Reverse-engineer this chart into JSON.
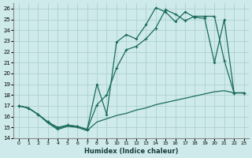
{
  "xlabel": "Humidex (Indice chaleur)",
  "background_color": "#ceeaea",
  "grid_color": "#aed0d0",
  "line_color": "#1a6b5a",
  "xlim": [
    -0.5,
    23.5
  ],
  "ylim": [
    14,
    26.5
  ],
  "xticks": [
    0,
    1,
    2,
    3,
    4,
    5,
    6,
    7,
    8,
    9,
    10,
    11,
    12,
    13,
    14,
    15,
    16,
    17,
    18,
    19,
    20,
    21,
    22,
    23
  ],
  "yticks": [
    14,
    15,
    16,
    17,
    18,
    19,
    20,
    21,
    22,
    23,
    24,
    25,
    26
  ],
  "line1_x": [
    0,
    1,
    2,
    3,
    4,
    5,
    6,
    7,
    8,
    9,
    10,
    11,
    12,
    13,
    14,
    15,
    16,
    17,
    18,
    19,
    20,
    21,
    22,
    23
  ],
  "line1_y": [
    17.0,
    16.8,
    16.2,
    15.4,
    14.8,
    15.1,
    15.0,
    14.7,
    15.5,
    15.8,
    16.1,
    16.3,
    16.6,
    16.8,
    17.1,
    17.3,
    17.5,
    17.7,
    17.9,
    18.1,
    18.3,
    18.4,
    18.2,
    18.2
  ],
  "line2_x": [
    0,
    1,
    2,
    3,
    4,
    5,
    6,
    7,
    8,
    9,
    10,
    11,
    12,
    13,
    14,
    15,
    16,
    17,
    18,
    19,
    20,
    21,
    22,
    23
  ],
  "line2_y": [
    17.0,
    16.8,
    16.2,
    15.5,
    15.0,
    15.2,
    15.1,
    14.8,
    19.0,
    16.2,
    22.9,
    23.6,
    23.2,
    24.5,
    26.1,
    25.7,
    24.8,
    25.7,
    25.2,
    25.1,
    21.0,
    25.0,
    18.2,
    18.2
  ],
  "line3_x": [
    0,
    1,
    2,
    3,
    4,
    5,
    6,
    7,
    8,
    9,
    10,
    11,
    12,
    13,
    14,
    15,
    16,
    17,
    18,
    19,
    20,
    21,
    22,
    23
  ],
  "line3_y": [
    17.0,
    16.8,
    16.2,
    15.5,
    14.9,
    15.2,
    15.1,
    14.8,
    17.1,
    18.0,
    20.5,
    22.2,
    22.5,
    23.2,
    24.2,
    25.9,
    25.5,
    24.9,
    25.3,
    25.3,
    25.3,
    21.2,
    18.2,
    18.2
  ]
}
